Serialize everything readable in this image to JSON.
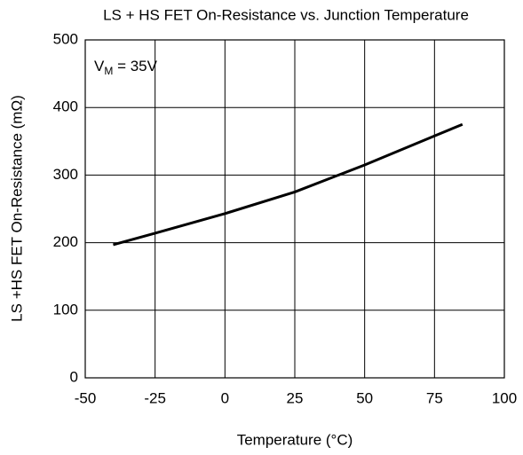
{
  "chart_data": {
    "type": "line",
    "title": "LS + HS FET On-Resistance vs. Junction Temperature",
    "xlabel": "Temperature (°C)",
    "ylabel": "LS +HS FET On-Resistance (mΩ)",
    "annotation": {
      "text": "V",
      "subscript": "M",
      "suffix": " = 35V"
    },
    "x": [
      -40,
      -25,
      0,
      25,
      50,
      75,
      85
    ],
    "series": [
      {
        "color": "#000000",
        "values": [
          197,
          214,
          243,
          275,
          315,
          358,
          375
        ]
      }
    ],
    "xlim": [
      -50,
      100
    ],
    "xticks": [
      -50,
      -25,
      0,
      25,
      50,
      75,
      100
    ],
    "ylim": [
      0,
      500
    ],
    "yticks": [
      0,
      100,
      200,
      300,
      400,
      500
    ],
    "grid": true
  }
}
